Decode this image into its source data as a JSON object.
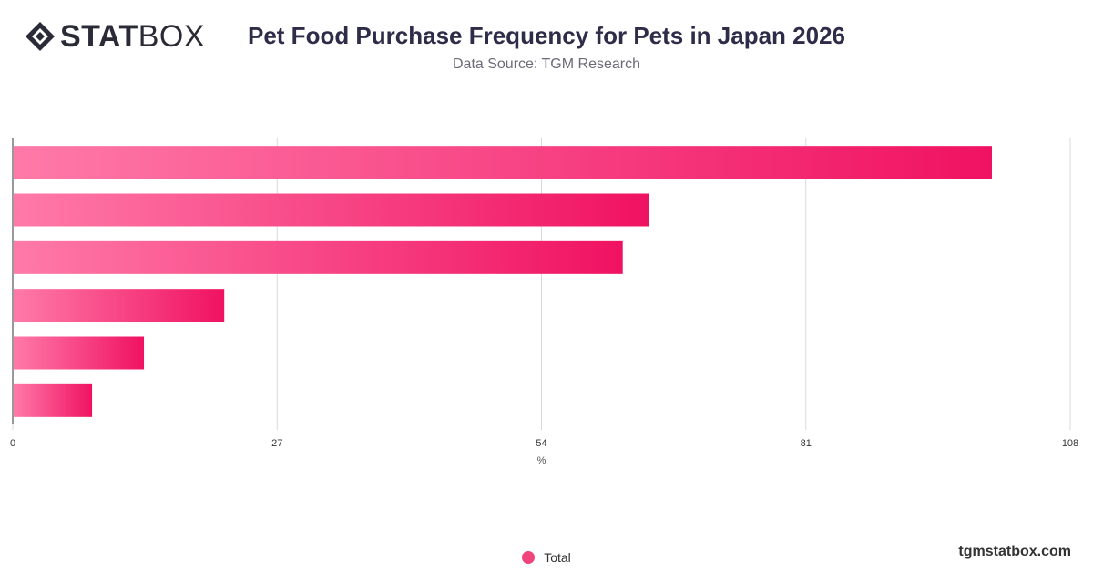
{
  "header": {
    "logo_bold": "STAT",
    "logo_light": "BOX",
    "title": "Pet Food Purchase Frequency for Pets in Japan 2026",
    "subtitle": "Data Source: TGM Research"
  },
  "footer": {
    "brand": "tgmstatbox.com"
  },
  "colors": {
    "bar_start": "#ff7aa8",
    "bar_end": "#f01262",
    "grid": "#d9d9d9",
    "axis": "#333333",
    "title": "#2e2c48"
  },
  "chart_data": {
    "type": "bar",
    "orientation": "horizontal",
    "categories": [
      "",
      "",
      "",
      "",
      "",
      ""
    ],
    "series": [
      {
        "name": "Total",
        "values": [
          100,
          65,
          62.3,
          21.6,
          13.4,
          8.1
        ]
      }
    ],
    "xlabel": "%",
    "xlim": [
      0,
      108
    ],
    "ticks": [
      0,
      27,
      54,
      81,
      108
    ],
    "grid": true,
    "legend": "bottom-center"
  }
}
